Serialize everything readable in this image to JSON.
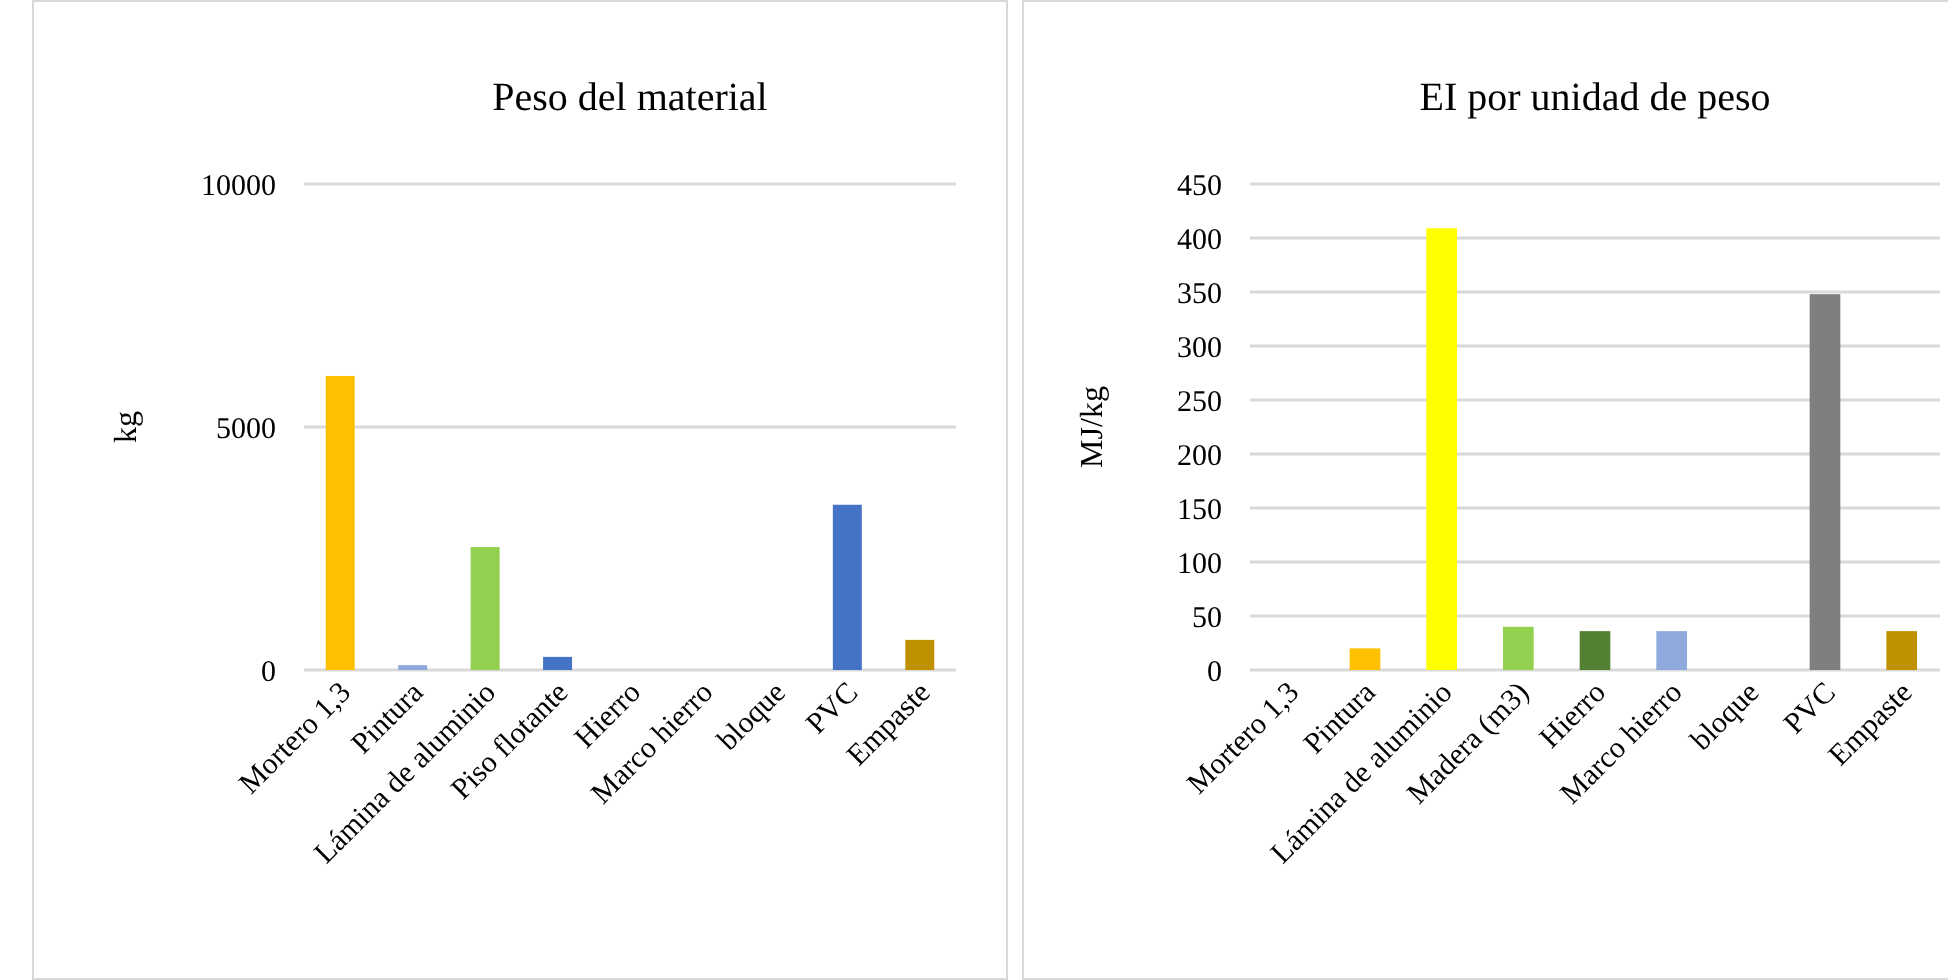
{
  "chart_data": [
    {
      "type": "bar",
      "title": "Peso del material",
      "ylabel": "kg",
      "categories": [
        "Mortero 1,3",
        "Pintura",
        "Lámina de aluminio",
        "Piso flotante",
        "Hierro",
        "Marco hierro",
        "bloque",
        "PVC",
        "Empaste"
      ],
      "values": [
        6050,
        100,
        2530,
        270,
        0,
        0,
        0,
        3400,
        620
      ],
      "colors": [
        "#ffc000",
        "#8faadc",
        "#92d050",
        "#4472c4",
        "#548235",
        "#8faadc",
        "#a5a5a5",
        "#4472c4",
        "#bf9000"
      ],
      "ylim": [
        0,
        10000
      ],
      "yticks": [
        0,
        5000,
        10000
      ],
      "grid": "y"
    },
    {
      "type": "bar",
      "title": "EI por unidad de peso",
      "ylabel": "MJ/kg",
      "categories": [
        "Mortero 1,3",
        "Pintura",
        "Lámina de aluminio",
        "Madera  (m3)",
        "Hierro",
        "Marco hierro",
        "bloque",
        "PVC",
        "Empaste"
      ],
      "values": [
        0,
        20,
        409,
        40,
        36,
        36,
        0,
        348,
        36
      ],
      "colors": [
        "#ffc000",
        "#ffc000",
        "#ffff00",
        "#92d050",
        "#548235",
        "#8faadc",
        "#a5a5a5",
        "#7f7f7f",
        "#bf9000"
      ],
      "ylim": [
        0,
        450
      ],
      "yticks": [
        0,
        50,
        100,
        150,
        200,
        250,
        300,
        350,
        400,
        450
      ],
      "grid": "y"
    }
  ]
}
